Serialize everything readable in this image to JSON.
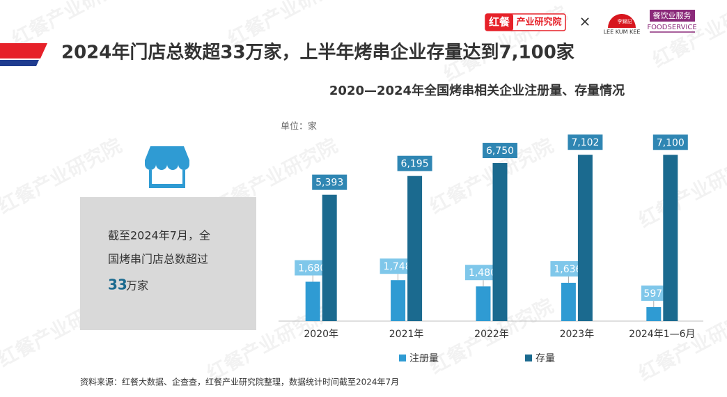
{
  "header": {
    "title": "2024年门店总数超33万家，上半年烤串企业存量达到7,100家",
    "brand": "红餐",
    "brand_sub": "产业研究院",
    "cross": "×",
    "lkk_cn": "李錦記",
    "lkk_en": "LEE KUM KEE",
    "fs_cn": "餐饮业服务",
    "fs_en": "FOODSERVICE"
  },
  "watermark": "红餐产业研究院",
  "callout": {
    "line1": "截至2024年7月，全",
    "line2": "国烤串门店总数超过",
    "number": "33",
    "unit": "万家"
  },
  "source": "资料来源：红餐大数据、企查查，红餐产业研究院整理，数据统计时间截至2024年7月",
  "chart_data": {
    "type": "bar",
    "title": "2020—2024年全国烤串相关企业注册量、存量情况",
    "unit_label": "单位：家",
    "categories": [
      "2020年",
      "2021年",
      "2022年",
      "2023年",
      "2024年1—6月"
    ],
    "series": [
      {
        "name": "注册量",
        "color": "#2f9bd3",
        "values": [
          1680,
          1748,
          1480,
          1636,
          597
        ],
        "value_labels": [
          "1,680",
          "1,748",
          "1,480",
          "1,636",
          "597"
        ]
      },
      {
        "name": "存量",
        "color": "#1b6a8f",
        "values": [
          5393,
          6195,
          6750,
          7102,
          7100
        ],
        "value_labels": [
          "5,393",
          "6,195",
          "6,750",
          "7,102",
          "7,100"
        ]
      }
    ],
    "ylim": [
      0,
      8000
    ]
  }
}
